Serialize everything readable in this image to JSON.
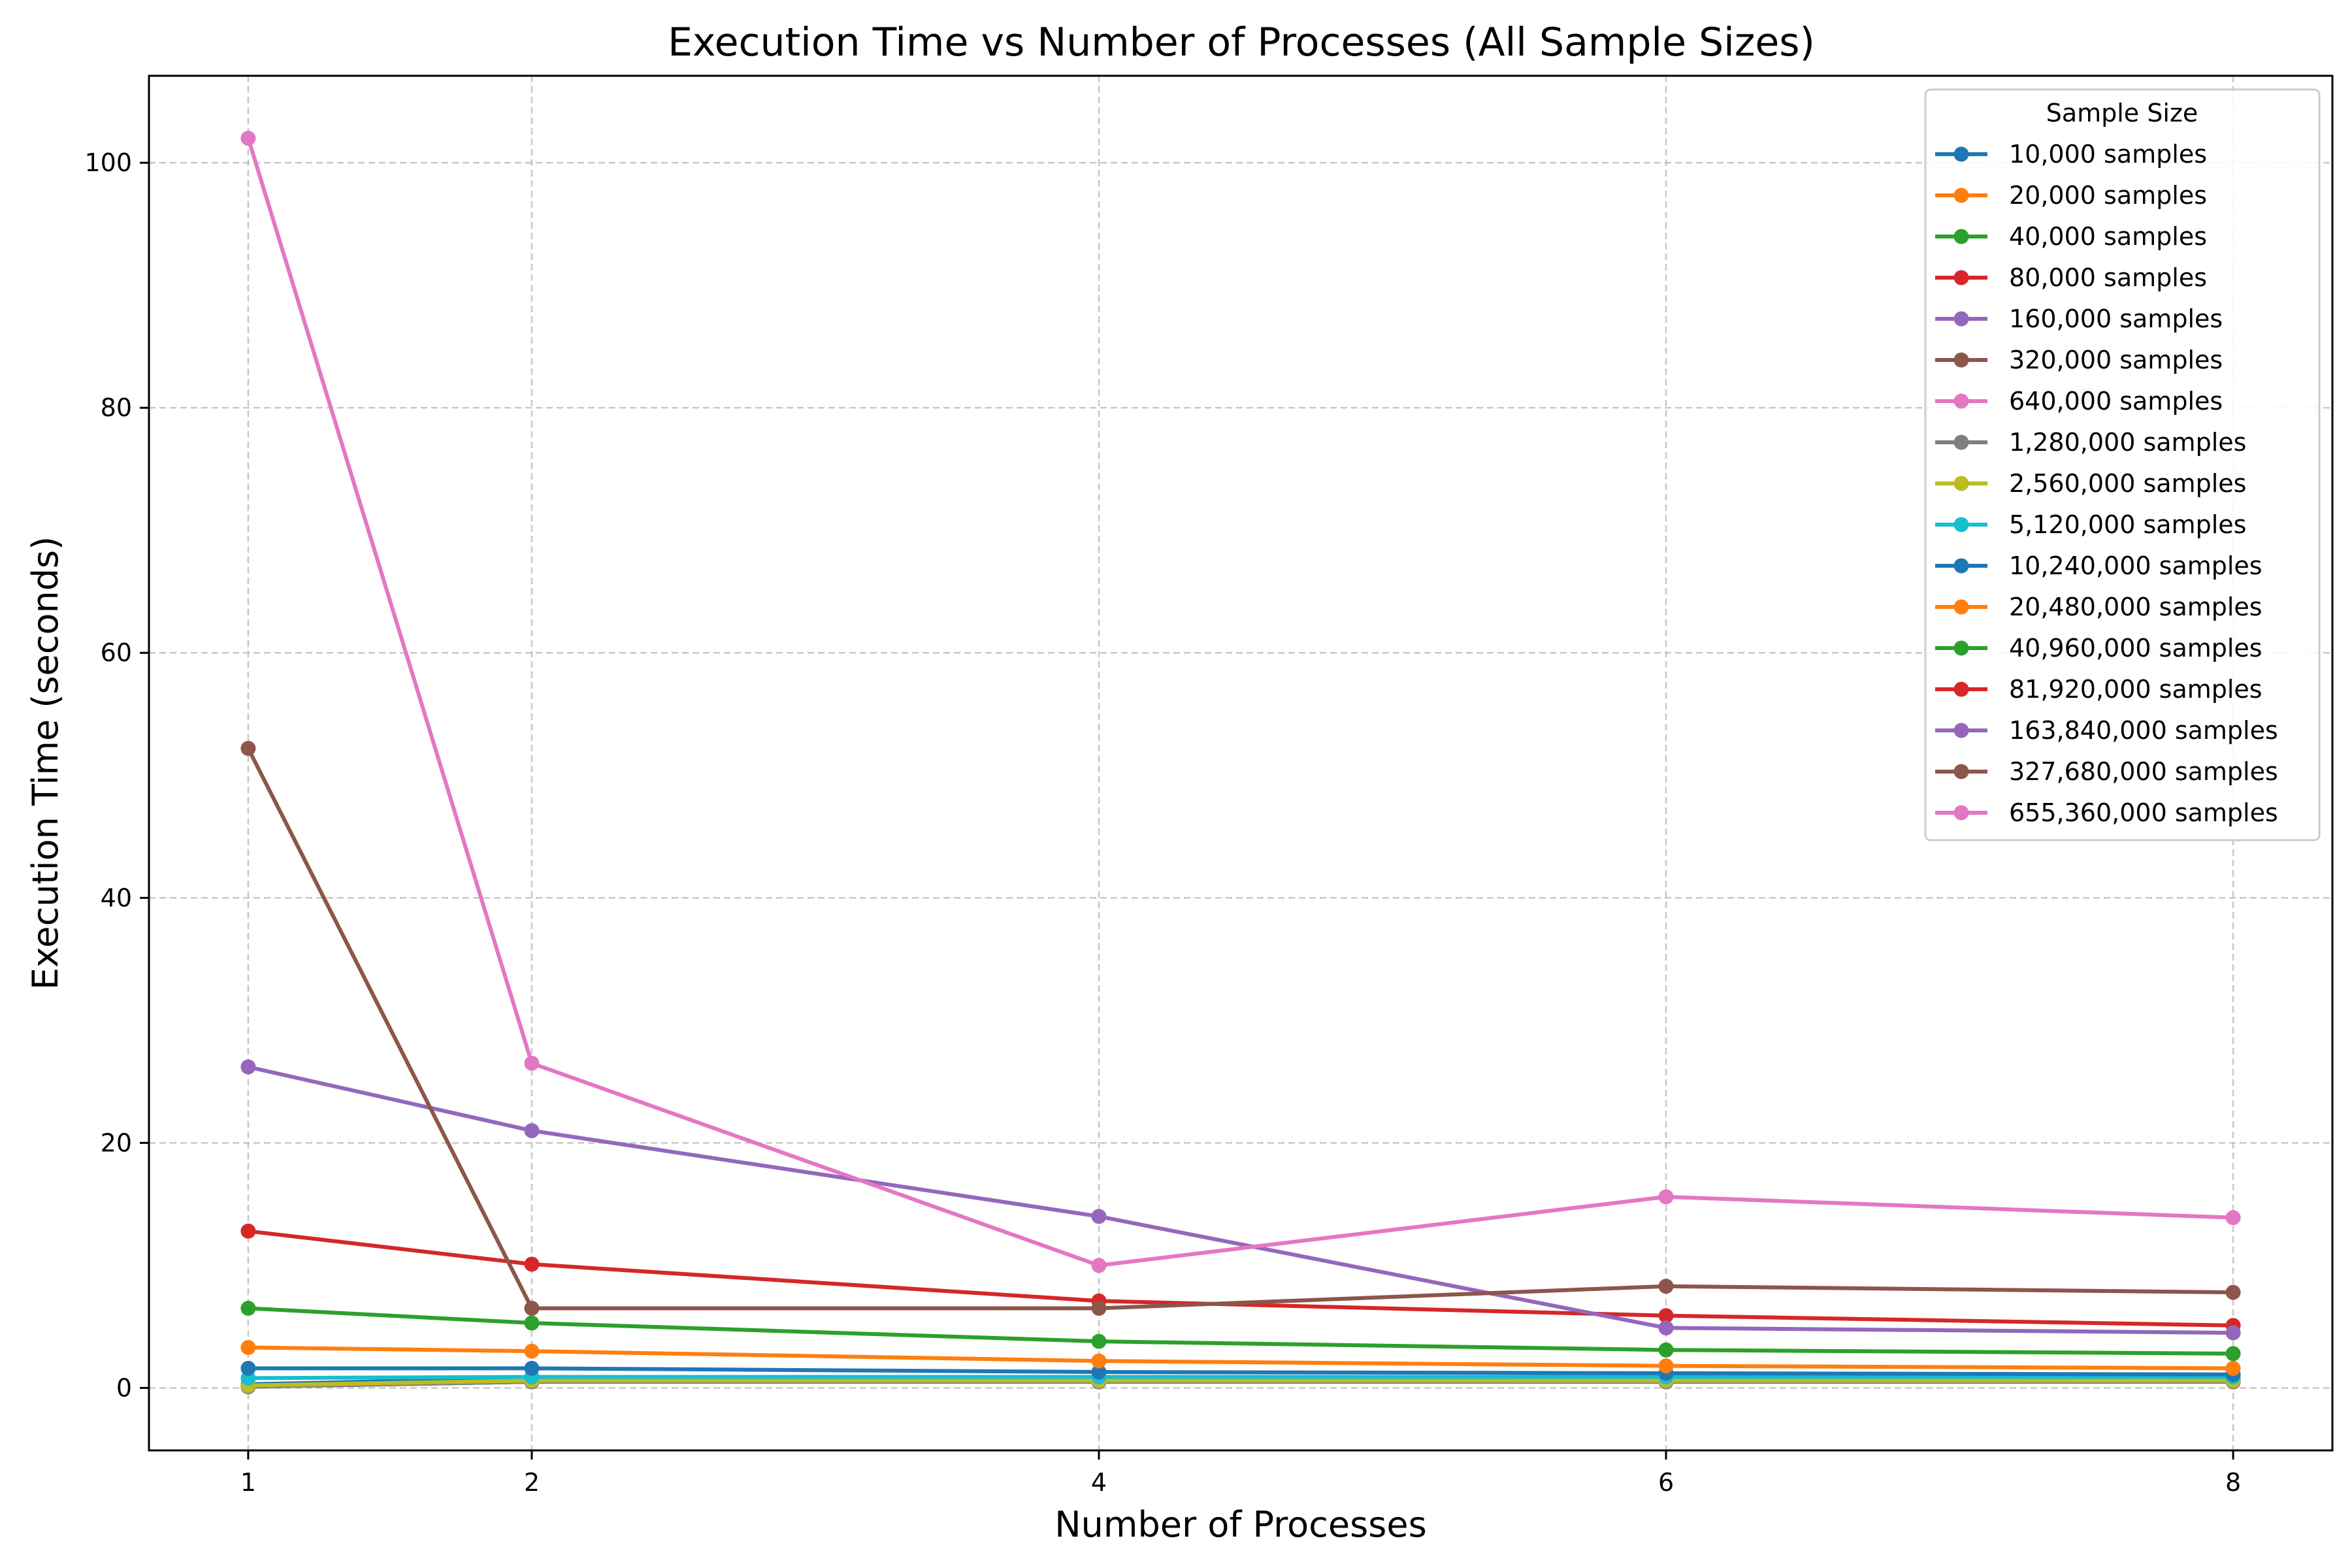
{
  "chart_data": {
    "type": "line",
    "title": "Execution Time vs Number of Processes (All Sample Sizes)",
    "xlabel": "Number of Processes",
    "ylabel": "Execution Time (seconds)",
    "x": [
      1,
      2,
      4,
      6,
      8
    ],
    "xticks": [
      1,
      2,
      4,
      6,
      8
    ],
    "yticks": [
      0,
      20,
      40,
      60,
      80,
      100
    ],
    "xlim": [
      0.65,
      8.35
    ],
    "ylim": [
      -5.1,
      107.1
    ],
    "grid": true,
    "legend_title": "Sample Size",
    "legend_position": "top-right",
    "series": [
      {
        "name": "10,000 samples",
        "color": "#1f77b4",
        "values": [
          0.3,
          0.8,
          0.8,
          0.8,
          0.8
        ]
      },
      {
        "name": "20,000 samples",
        "color": "#ff7f0e",
        "values": [
          0.2,
          0.6,
          0.6,
          0.6,
          0.6
        ]
      },
      {
        "name": "40,000 samples",
        "color": "#2ca02c",
        "values": [
          0.2,
          0.6,
          0.6,
          0.6,
          0.6
        ]
      },
      {
        "name": "80,000 samples",
        "color": "#d62728",
        "values": [
          0.1,
          0.5,
          0.5,
          0.5,
          0.5
        ]
      },
      {
        "name": "160,000 samples",
        "color": "#9467bd",
        "values": [
          0.1,
          0.5,
          0.5,
          0.5,
          0.5
        ]
      },
      {
        "name": "320,000 samples",
        "color": "#8c564b",
        "values": [
          0.1,
          0.5,
          0.5,
          0.5,
          0.5
        ]
      },
      {
        "name": "640,000 samples",
        "color": "#e377c2",
        "values": [
          0.1,
          0.5,
          0.5,
          0.5,
          0.5
        ]
      },
      {
        "name": "1,280,000 samples",
        "color": "#7f7f7f",
        "values": [
          0.1,
          0.5,
          0.5,
          0.5,
          0.5
        ]
      },
      {
        "name": "2,560,000 samples",
        "color": "#bcbd22",
        "values": [
          0.2,
          0.6,
          0.6,
          0.6,
          0.6
        ]
      },
      {
        "name": "5,120,000 samples",
        "color": "#17becf",
        "values": [
          0.8,
          0.9,
          0.9,
          0.9,
          0.9
        ]
      },
      {
        "name": "10,240,000 samples",
        "color": "#1f77b4",
        "values": [
          1.6,
          1.6,
          1.3,
          1.2,
          1.1
        ]
      },
      {
        "name": "20,480,000 samples",
        "color": "#ff7f0e",
        "values": [
          3.3,
          3.0,
          2.2,
          1.8,
          1.6
        ]
      },
      {
        "name": "40,960,000 samples",
        "color": "#2ca02c",
        "values": [
          6.5,
          5.3,
          3.8,
          3.1,
          2.8
        ]
      },
      {
        "name": "81,920,000 samples",
        "color": "#d62728",
        "values": [
          12.8,
          10.1,
          7.1,
          5.9,
          5.1
        ]
      },
      {
        "name": "163,840,000 samples",
        "color": "#9467bd",
        "values": [
          26.2,
          21.0,
          14.0,
          4.9,
          4.5
        ]
      },
      {
        "name": "327,680,000 samples",
        "color": "#8c564b",
        "values": [
          52.2,
          6.5,
          6.5,
          8.3,
          7.8
        ]
      },
      {
        "name": "655,360,000 samples",
        "color": "#e377c2",
        "values": [
          102.0,
          26.5,
          10.0,
          15.6,
          13.9
        ]
      }
    ]
  }
}
